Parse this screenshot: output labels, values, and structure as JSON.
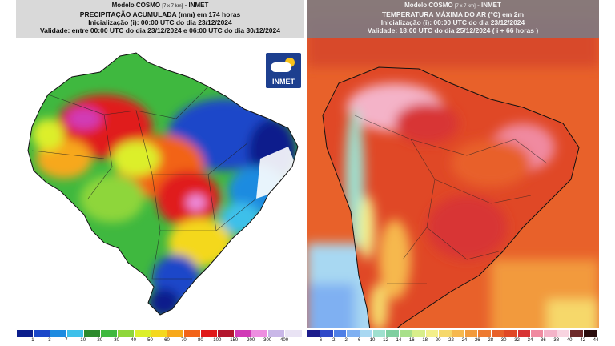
{
  "left_map": {
    "title_line1": "Modelo COSMO",
    "title_res": "[7 x 7 km]",
    "title_org": "- INMET",
    "title_line2": "PRECIPITAÇÃO ACUMULADA (mm) em 174 horas",
    "title_line3": "Inicialização (i): 00:00 UTC do dia 23/12/2024",
    "title_line4": "Validade: entre 00:00 UTC do dia 23/12/2024 e 06:00 UTC do dia 30/12/2024",
    "logo_text": "INMET",
    "colorbar_labels": [
      "1",
      "3",
      "7",
      "10",
      "20",
      "30",
      "40",
      "50",
      "60",
      "70",
      "80",
      "100",
      "150",
      "200",
      "300",
      "400"
    ],
    "colorbar_colors": [
      "#0b1e8c",
      "#1a47c9",
      "#1e8be0",
      "#3ec0ea",
      "#2c8a2c",
      "#3fb83f",
      "#8ed63a",
      "#dcef2a",
      "#f4d81e",
      "#f7a81a",
      "#f26419",
      "#e01a1a",
      "#b3162d",
      "#d13ab6",
      "#ee8ee0",
      "#c9b7e8",
      "#e9e3f4"
    ]
  },
  "right_map": {
    "title_line1": "Modelo COSMO",
    "title_res": "[7 x 7 km]",
    "title_org": "- INMET",
    "title_line2": "TEMPERATURA MÁXIMA DO AR (°C) em 2m",
    "title_line3": "Inicialização (i): 00:00 UTC do dia 23/12/2024",
    "title_line4": "Validade: 18:00 UTC do dia 25/12/2024 ( i + 66 horas )",
    "colorbar_labels": [
      "-6",
      "-2",
      "2",
      "6",
      "10",
      "12",
      "14",
      "16",
      "18",
      "20",
      "22",
      "24",
      "26",
      "28",
      "30",
      "32",
      "34",
      "36",
      "38",
      "40",
      "42",
      "44"
    ],
    "colorbar_colors": [
      "#1c1c8c",
      "#2f49c8",
      "#4f7fe6",
      "#7fb0f2",
      "#a8d8f2",
      "#9fe0cf",
      "#7fcfa0",
      "#a8e08a",
      "#d8ee8a",
      "#f3ef8a",
      "#f6d86a",
      "#f6b84e",
      "#f29a3c",
      "#ee7a30",
      "#e8612a",
      "#e04826",
      "#d83434",
      "#f08aa0",
      "#f4b3c8",
      "#f8d4e0",
      "#6e2a2a",
      "#2a0d0d"
    ]
  }
}
